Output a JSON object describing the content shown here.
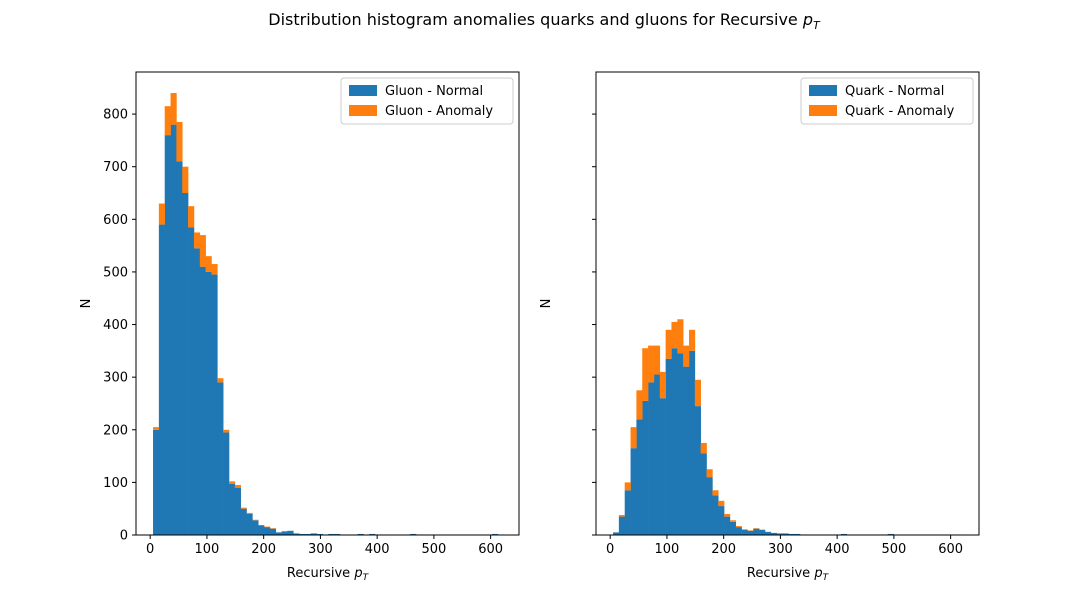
{
  "figure": {
    "title_main": "Distribution histogram anomalies quarks and gluons for Recursive ",
    "title_math_letter": "p",
    "title_math_sub": "T"
  },
  "colors": {
    "normal": "#1f77b4",
    "anomaly": "#ff7f0e"
  },
  "chart_data": [
    {
      "type": "bar",
      "stacked": true,
      "xlabel_main": "Recursive ",
      "xlabel_math_letter": "p",
      "xlabel_math_sub": "T",
      "ylabel": "N",
      "xlim": [
        -25,
        650
      ],
      "ylim": [
        0,
        880
      ],
      "xticks": [
        0,
        100,
        200,
        300,
        400,
        500,
        600
      ],
      "yticks": [
        0,
        100,
        200,
        300,
        400,
        500,
        600,
        700,
        800
      ],
      "legend_position": "top-right",
      "bin_width": 10.3,
      "bin_starts": [
        5,
        15.3,
        25.6,
        35.9,
        46.2,
        56.5,
        66.8,
        77.1,
        87.4,
        97.7,
        108,
        118.3,
        128.6,
        138.9,
        149.2,
        159.5,
        169.8,
        180.1,
        190.4,
        200.7,
        211,
        221.3,
        231.6,
        241.9,
        252.2,
        262.5,
        272.8,
        283.1,
        293.4,
        303.7,
        314,
        324.3,
        334.6,
        344.9,
        355.2,
        365.5,
        375.8,
        386.1,
        396.4,
        406.7,
        417,
        427.3,
        437.6,
        447.9,
        458.2,
        468.5,
        478.8,
        489.1,
        499.4,
        509.7,
        520,
        530.3,
        540.6,
        550.9,
        561.2,
        571.5,
        581.8,
        592.1,
        602.4,
        612.7
      ],
      "series": [
        {
          "name": "Gluon - Normal",
          "values": [
            200,
            590,
            760,
            780,
            710,
            650,
            585,
            545,
            510,
            500,
            495,
            290,
            195,
            97,
            90,
            50,
            40,
            28,
            18,
            15,
            12,
            5,
            7,
            8,
            3,
            2,
            2,
            3,
            2,
            1,
            2,
            2,
            1,
            1,
            1,
            2,
            1,
            2,
            1,
            1,
            1,
            1,
            1,
            1,
            2,
            1,
            1,
            1,
            1,
            1,
            1,
            1,
            1,
            1,
            1,
            1,
            1,
            1,
            2,
            1
          ]
        },
        {
          "name": "Gluon - Anomaly",
          "values": [
            5,
            40,
            55,
            60,
            75,
            50,
            40,
            30,
            60,
            30,
            20,
            8,
            5,
            5,
            5,
            2,
            2,
            1,
            1,
            1,
            1,
            0,
            0,
            0,
            0,
            0,
            0,
            0,
            0,
            0,
            0,
            0,
            0,
            0,
            0,
            0,
            0,
            0,
            0,
            0,
            0,
            0,
            0,
            0,
            0,
            0,
            0,
            0,
            0,
            0,
            0,
            0,
            0,
            0,
            0,
            0,
            0,
            0,
            0,
            0
          ]
        }
      ]
    },
    {
      "type": "bar",
      "stacked": true,
      "xlabel_main": "Recursive ",
      "xlabel_math_letter": "p",
      "xlabel_math_sub": "T",
      "ylabel": "N",
      "xlim": [
        -25,
        650
      ],
      "ylim": [
        0,
        880
      ],
      "xticks": [
        0,
        100,
        200,
        300,
        400,
        500,
        600
      ],
      "yticks": [
        0,
        100,
        200,
        300,
        400,
        500,
        600,
        700,
        800
      ],
      "legend_position": "top-right",
      "bin_width": 10.3,
      "bin_starts": [
        5,
        15.3,
        25.6,
        35.9,
        46.2,
        56.5,
        66.8,
        77.1,
        87.4,
        97.7,
        108,
        118.3,
        128.6,
        138.9,
        149.2,
        159.5,
        169.8,
        180.1,
        190.4,
        200.7,
        211,
        221.3,
        231.6,
        241.9,
        252.2,
        262.5,
        272.8,
        283.1,
        293.4,
        303.7,
        314,
        324.3,
        334.6,
        344.9,
        355.2,
        365.5,
        375.8,
        386.1,
        396.4,
        406.7,
        417,
        427.3,
        437.6,
        447.9,
        458.2,
        468.5,
        478.8,
        489.1,
        499.4,
        509.7,
        520,
        530.3,
        540.6,
        550.9,
        561.2,
        571.5,
        581.8,
        592.1,
        602.4,
        612.7
      ],
      "series": [
        {
          "name": "Quark - Normal",
          "values": [
            5,
            35,
            85,
            165,
            220,
            255,
            290,
            305,
            260,
            335,
            355,
            345,
            320,
            350,
            245,
            155,
            110,
            75,
            55,
            35,
            25,
            15,
            10,
            8,
            12,
            10,
            6,
            4,
            3,
            3,
            2,
            2,
            1,
            1,
            1,
            1,
            1,
            1,
            1,
            2,
            1,
            1,
            1,
            1,
            1,
            1,
            1,
            2,
            1,
            1,
            1,
            1,
            1,
            1,
            1,
            1,
            1,
            1,
            1,
            1
          ]
        },
        {
          "name": "Quark - Anomaly",
          "values": [
            0,
            3,
            15,
            40,
            55,
            100,
            70,
            55,
            50,
            55,
            50,
            65,
            40,
            40,
            50,
            20,
            15,
            10,
            10,
            5,
            3,
            2,
            1,
            1,
            1,
            0,
            0,
            0,
            0,
            0,
            0,
            0,
            0,
            0,
            0,
            0,
            0,
            0,
            0,
            0,
            0,
            0,
            0,
            0,
            0,
            0,
            0,
            0,
            0,
            0,
            0,
            0,
            0,
            0,
            0,
            0,
            0,
            0,
            0,
            0
          ]
        }
      ]
    }
  ]
}
